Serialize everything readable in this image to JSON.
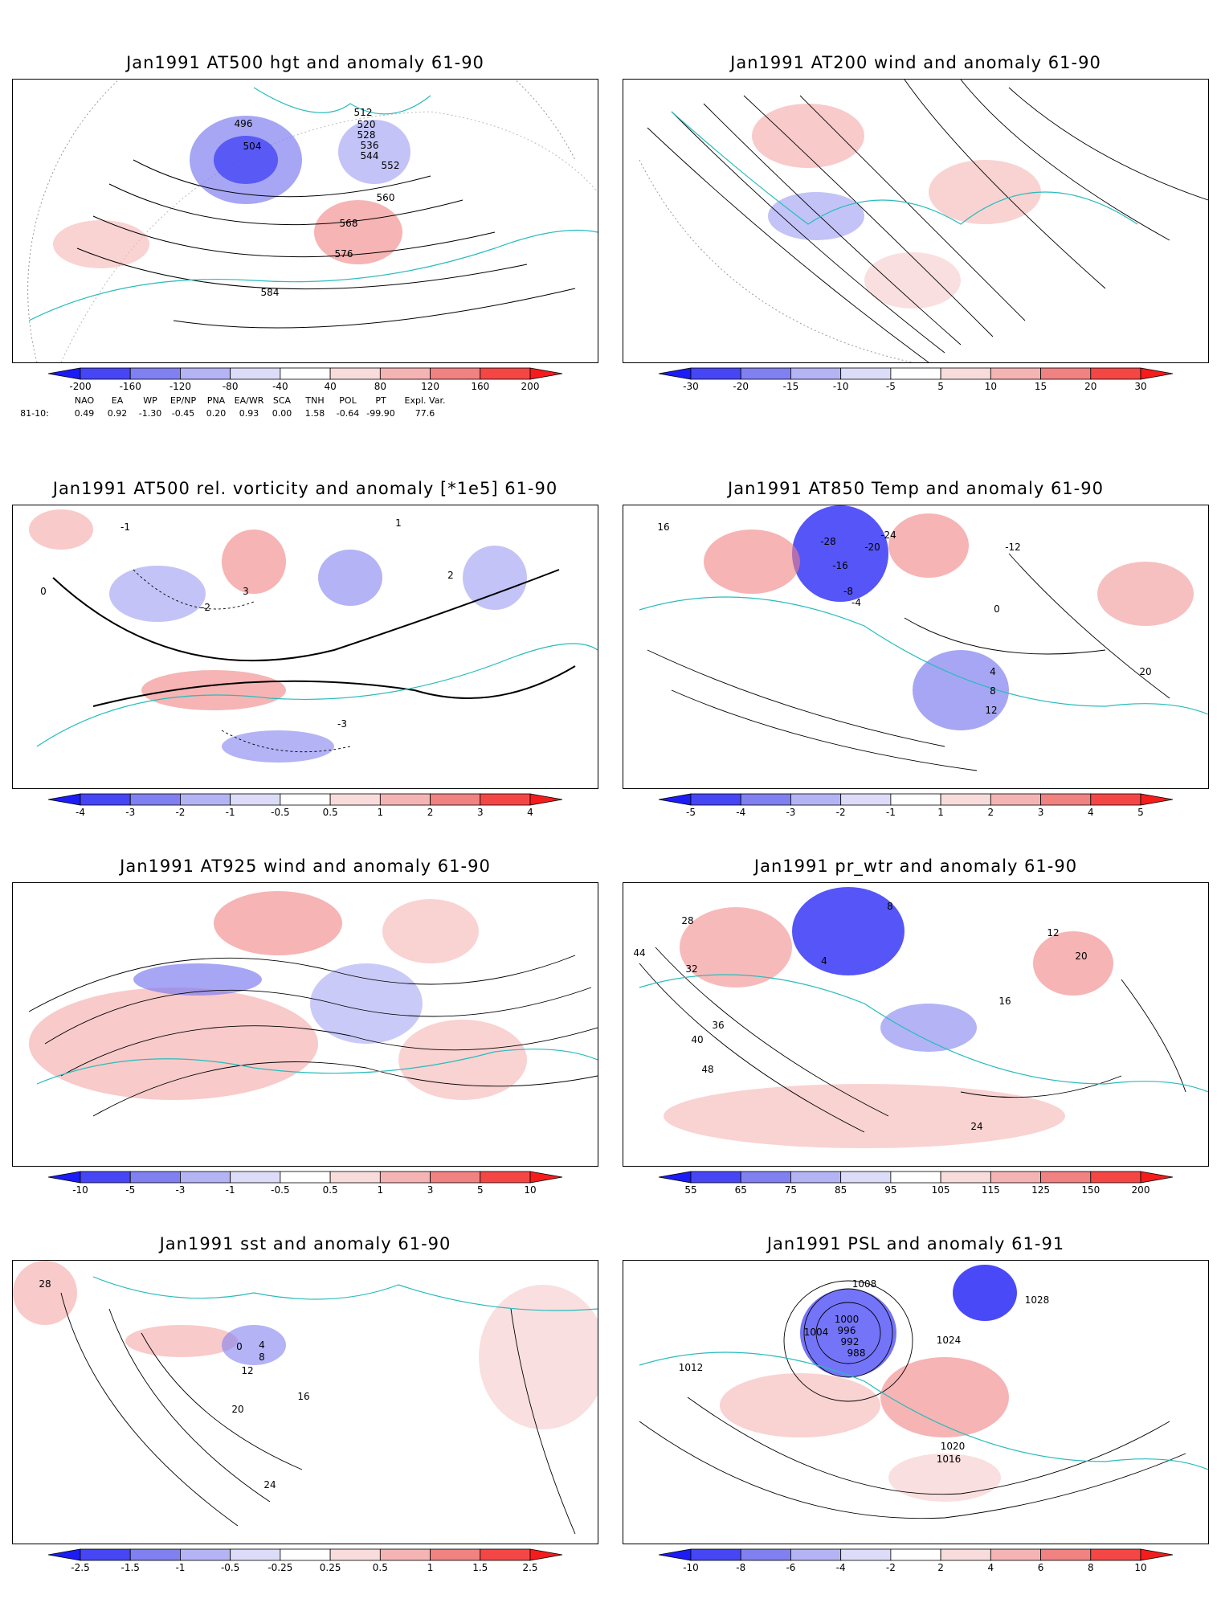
{
  "panels": [
    {
      "id": "p1",
      "title": "Jan1991 AT500 hgt and anomaly 61-90",
      "contour_labels": [
        "496",
        "504",
        "512",
        "520",
        "528",
        "536",
        "544",
        "552",
        "560",
        "568",
        "576",
        "584"
      ],
      "colorbar": [
        "-200",
        "-160",
        "-120",
        "-80",
        "-40",
        "40",
        "80",
        "120",
        "160",
        "200"
      ]
    },
    {
      "id": "p2",
      "title": "Jan1991 AT200 wind and anomaly 61-90",
      "contour_labels": [],
      "colorbar": [
        "-30",
        "-20",
        "-15",
        "-10",
        "-5",
        "5",
        "10",
        "15",
        "20",
        "30"
      ]
    },
    {
      "id": "p3",
      "title": "Jan1991 AT500 rel. vorticity and anomaly [*1e5] 61-90",
      "contour_labels": [
        "-1",
        "0",
        "-2",
        "-3",
        "1",
        "2",
        "3"
      ],
      "colorbar": [
        "-4",
        "-3",
        "-2",
        "-1",
        "-0.5",
        "0.5",
        "1",
        "2",
        "3",
        "4"
      ]
    },
    {
      "id": "p4",
      "title": "Jan1991 AT850 Temp and anomaly 61-90",
      "contour_labels": [
        "16",
        "-28",
        "-24",
        "-20",
        "-16",
        "-12",
        "-8",
        "-4",
        "0",
        "4",
        "8",
        "12",
        "20"
      ],
      "colorbar": [
        "-5",
        "-4",
        "-3",
        "-2",
        "-1",
        "1",
        "2",
        "3",
        "4",
        "5"
      ]
    },
    {
      "id": "p5",
      "title": "Jan1991 AT925 wind and anomaly 61-90",
      "contour_labels": [],
      "colorbar": [
        "-10",
        "-5",
        "-3",
        "-1",
        "-0.5",
        "0.5",
        "1",
        "3",
        "5",
        "10"
      ]
    },
    {
      "id": "p6",
      "title": "Jan1991 pr_wtr and anomaly 61-90",
      "contour_labels": [
        "4",
        "8",
        "12",
        "16",
        "20",
        "24",
        "28",
        "32",
        "36",
        "40",
        "44",
        "48"
      ],
      "colorbar": [
        "55",
        "65",
        "75",
        "85",
        "95",
        "105",
        "115",
        "125",
        "150",
        "200"
      ]
    },
    {
      "id": "p7",
      "title": "Jan1991 sst and anomaly 61-90",
      "contour_labels": [
        "28",
        "24",
        "20",
        "16",
        "12",
        "8",
        "4",
        "0"
      ],
      "colorbar": [
        "-2.5",
        "-1.5",
        "-1",
        "-0.5",
        "-0.25",
        "0.25",
        "0.5",
        "1",
        "1.5",
        "2.5"
      ]
    },
    {
      "id": "p8",
      "title": "Jan1991 PSL and anomaly 61-91",
      "contour_labels": [
        "988",
        "992",
        "996",
        "1000",
        "1004",
        "1008",
        "1012",
        "1016",
        "1020",
        "1024",
        "1028"
      ],
      "colorbar": [
        "-10",
        "-8",
        "-6",
        "-4",
        "-2",
        "2",
        "4",
        "6",
        "8",
        "10"
      ]
    }
  ],
  "teleconnections": {
    "headers": [
      "NAO",
      "EA",
      "WP",
      "EP/NP",
      "PNA",
      "EA/WR",
      "SCA",
      "TNH",
      "POL",
      "PT",
      "Expl. Var."
    ],
    "row_label": "81-10:",
    "values": [
      "0.49",
      "0.92",
      "-1.30",
      "-0.45",
      "0.20",
      "0.93",
      "0.00",
      "1.58",
      "-0.64",
      "-99.90",
      "77.6"
    ]
  },
  "colors": {
    "blue_scale": [
      "#1c1cf5",
      "#4646f5",
      "#8080f0",
      "#b4b4f5",
      "#dcdcf8"
    ],
    "red_scale": [
      "#f8dcdc",
      "#f5b4b4",
      "#f08282",
      "#f54646",
      "#f51c1c"
    ],
    "coast": "#28bcbc",
    "contour": "#000000"
  }
}
